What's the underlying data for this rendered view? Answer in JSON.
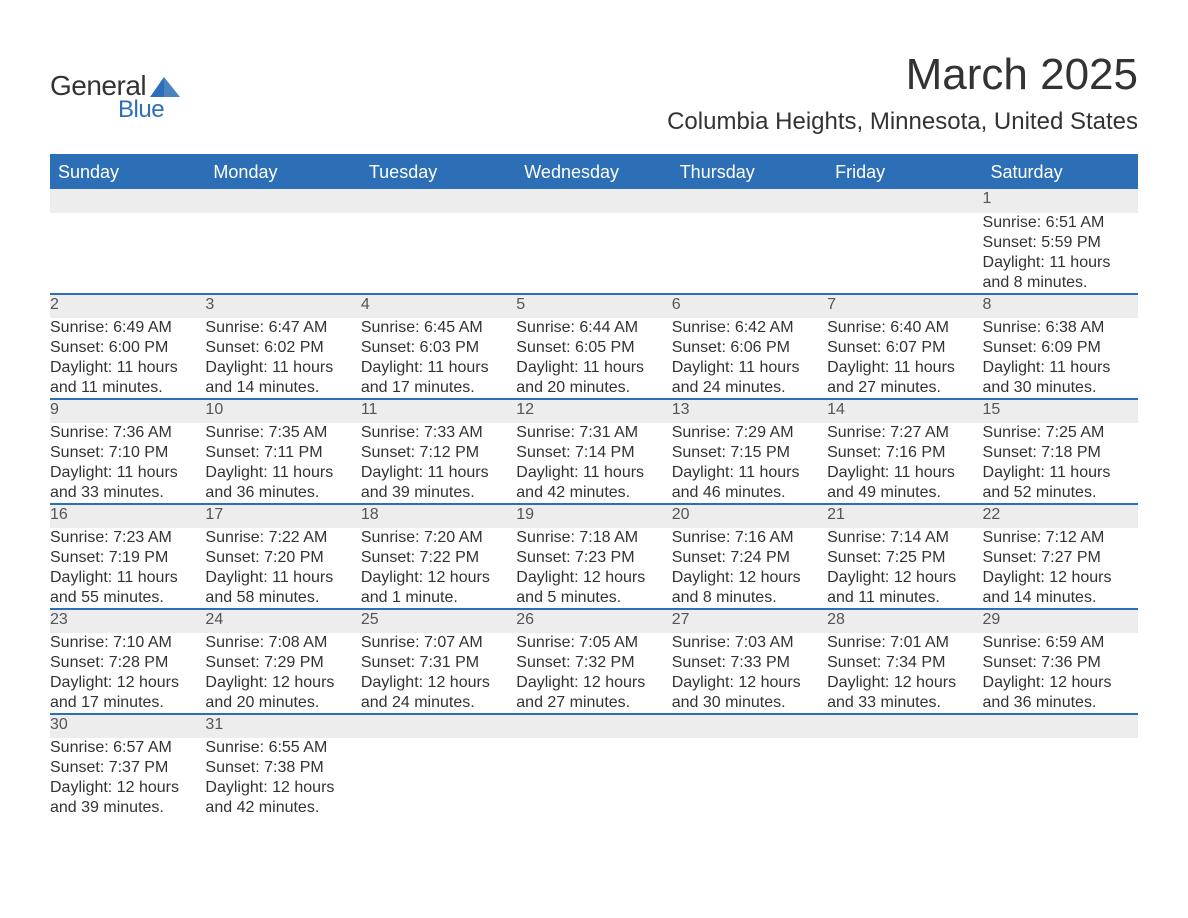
{
  "brand": {
    "text_general": "General",
    "text_blue": "Blue",
    "icon_color": "#2d6fb6"
  },
  "title": "March 2025",
  "location": "Columbia Heights, Minnesota, United States",
  "colors": {
    "header_bg": "#2d6fb6",
    "header_text": "#ffffff",
    "daynum_bg": "#ededed",
    "daynum_text": "#555555",
    "body_text": "#333333",
    "row_border": "#2d6fb6",
    "background": "#ffffff"
  },
  "typography": {
    "title_fontsize": 44,
    "location_fontsize": 24,
    "header_fontsize": 18,
    "daynum_fontsize": 18,
    "cell_fontsize": 16
  },
  "days_of_week": [
    "Sunday",
    "Monday",
    "Tuesday",
    "Wednesday",
    "Thursday",
    "Friday",
    "Saturday"
  ],
  "weeks": [
    [
      null,
      null,
      null,
      null,
      null,
      null,
      {
        "n": "1",
        "sunrise": "6:51 AM",
        "sunset": "5:59 PM",
        "daylight": "11 hours and 8 minutes."
      }
    ],
    [
      {
        "n": "2",
        "sunrise": "6:49 AM",
        "sunset": "6:00 PM",
        "daylight": "11 hours and 11 minutes."
      },
      {
        "n": "3",
        "sunrise": "6:47 AM",
        "sunset": "6:02 PM",
        "daylight": "11 hours and 14 minutes."
      },
      {
        "n": "4",
        "sunrise": "6:45 AM",
        "sunset": "6:03 PM",
        "daylight": "11 hours and 17 minutes."
      },
      {
        "n": "5",
        "sunrise": "6:44 AM",
        "sunset": "6:05 PM",
        "daylight": "11 hours and 20 minutes."
      },
      {
        "n": "6",
        "sunrise": "6:42 AM",
        "sunset": "6:06 PM",
        "daylight": "11 hours and 24 minutes."
      },
      {
        "n": "7",
        "sunrise": "6:40 AM",
        "sunset": "6:07 PM",
        "daylight": "11 hours and 27 minutes."
      },
      {
        "n": "8",
        "sunrise": "6:38 AM",
        "sunset": "6:09 PM",
        "daylight": "11 hours and 30 minutes."
      }
    ],
    [
      {
        "n": "9",
        "sunrise": "7:36 AM",
        "sunset": "7:10 PM",
        "daylight": "11 hours and 33 minutes."
      },
      {
        "n": "10",
        "sunrise": "7:35 AM",
        "sunset": "7:11 PM",
        "daylight": "11 hours and 36 minutes."
      },
      {
        "n": "11",
        "sunrise": "7:33 AM",
        "sunset": "7:12 PM",
        "daylight": "11 hours and 39 minutes."
      },
      {
        "n": "12",
        "sunrise": "7:31 AM",
        "sunset": "7:14 PM",
        "daylight": "11 hours and 42 minutes."
      },
      {
        "n": "13",
        "sunrise": "7:29 AM",
        "sunset": "7:15 PM",
        "daylight": "11 hours and 46 minutes."
      },
      {
        "n": "14",
        "sunrise": "7:27 AM",
        "sunset": "7:16 PM",
        "daylight": "11 hours and 49 minutes."
      },
      {
        "n": "15",
        "sunrise": "7:25 AM",
        "sunset": "7:18 PM",
        "daylight": "11 hours and 52 minutes."
      }
    ],
    [
      {
        "n": "16",
        "sunrise": "7:23 AM",
        "sunset": "7:19 PM",
        "daylight": "11 hours and 55 minutes."
      },
      {
        "n": "17",
        "sunrise": "7:22 AM",
        "sunset": "7:20 PM",
        "daylight": "11 hours and 58 minutes."
      },
      {
        "n": "18",
        "sunrise": "7:20 AM",
        "sunset": "7:22 PM",
        "daylight": "12 hours and 1 minute."
      },
      {
        "n": "19",
        "sunrise": "7:18 AM",
        "sunset": "7:23 PM",
        "daylight": "12 hours and 5 minutes."
      },
      {
        "n": "20",
        "sunrise": "7:16 AM",
        "sunset": "7:24 PM",
        "daylight": "12 hours and 8 minutes."
      },
      {
        "n": "21",
        "sunrise": "7:14 AM",
        "sunset": "7:25 PM",
        "daylight": "12 hours and 11 minutes."
      },
      {
        "n": "22",
        "sunrise": "7:12 AM",
        "sunset": "7:27 PM",
        "daylight": "12 hours and 14 minutes."
      }
    ],
    [
      {
        "n": "23",
        "sunrise": "7:10 AM",
        "sunset": "7:28 PM",
        "daylight": "12 hours and 17 minutes."
      },
      {
        "n": "24",
        "sunrise": "7:08 AM",
        "sunset": "7:29 PM",
        "daylight": "12 hours and 20 minutes."
      },
      {
        "n": "25",
        "sunrise": "7:07 AM",
        "sunset": "7:31 PM",
        "daylight": "12 hours and 24 minutes."
      },
      {
        "n": "26",
        "sunrise": "7:05 AM",
        "sunset": "7:32 PM",
        "daylight": "12 hours and 27 minutes."
      },
      {
        "n": "27",
        "sunrise": "7:03 AM",
        "sunset": "7:33 PM",
        "daylight": "12 hours and 30 minutes."
      },
      {
        "n": "28",
        "sunrise": "7:01 AM",
        "sunset": "7:34 PM",
        "daylight": "12 hours and 33 minutes."
      },
      {
        "n": "29",
        "sunrise": "6:59 AM",
        "sunset": "7:36 PM",
        "daylight": "12 hours and 36 minutes."
      }
    ],
    [
      {
        "n": "30",
        "sunrise": "6:57 AM",
        "sunset": "7:37 PM",
        "daylight": "12 hours and 39 minutes."
      },
      {
        "n": "31",
        "sunrise": "6:55 AM",
        "sunset": "7:38 PM",
        "daylight": "12 hours and 42 minutes."
      },
      null,
      null,
      null,
      null,
      null
    ]
  ],
  "labels": {
    "sunrise_prefix": "Sunrise: ",
    "sunset_prefix": "Sunset: ",
    "daylight_prefix": "Daylight: "
  }
}
